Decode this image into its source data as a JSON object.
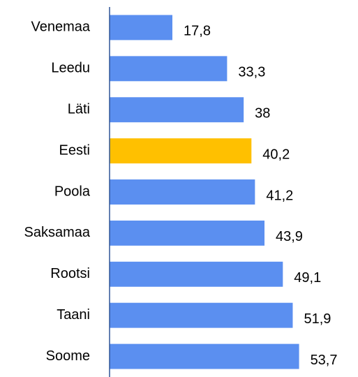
{
  "chart_data": {
    "type": "barh",
    "categories": [
      "Venemaa",
      "Leedu",
      "Läti",
      "Eesti",
      "Poola",
      "Saksamaa",
      "Rootsi",
      "Taani",
      "Soome"
    ],
    "values": [
      17.8,
      33.3,
      38,
      40.2,
      41.2,
      43.9,
      49.1,
      51.9,
      53.7
    ],
    "value_labels": [
      "17,8",
      "33,3",
      "38",
      "40,2",
      "41,2",
      "43,9",
      "49,1",
      "51,9",
      "53,7"
    ],
    "colors": [
      "#5b8ff0",
      "#5b8ff0",
      "#5b8ff0",
      "#ffc000",
      "#5b8ff0",
      "#5b8ff0",
      "#5b8ff0",
      "#5b8ff0",
      "#5b8ff0"
    ],
    "xlim": [
      0,
      70
    ]
  }
}
